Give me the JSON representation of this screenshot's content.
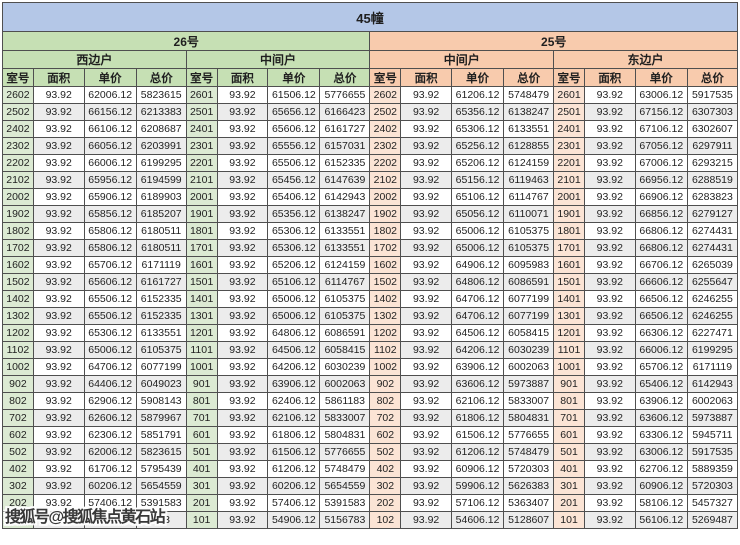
{
  "title": "45幢",
  "watermark": {
    "text": "搜狐号@搜狐焦点黄石站"
  },
  "colors": {
    "title_bar": "#b4c7e7",
    "group_green": "#c6e0b4",
    "group_peach": "#f8cbad",
    "room_cell_green": "#dcead3",
    "room_cell_peach": "#fbe4d5",
    "row_stripe": "#ececec",
    "border": "#4f4f4f"
  },
  "table": {
    "buildings": [
      {
        "label": "26号",
        "units": [
          "西边户",
          "中间户"
        ]
      },
      {
        "label": "25号",
        "units": [
          "中间户",
          "东边户"
        ]
      }
    ],
    "column_headers": [
      "室号",
      "面积",
      "单价",
      "总价"
    ],
    "rows": [
      [
        "2602",
        "93.92",
        "62006.12",
        "5823615",
        "2601",
        "93.92",
        "61506.12",
        "5776655",
        "2602",
        "93.92",
        "61206.12",
        "5748479",
        "2601",
        "93.92",
        "63006.12",
        "5917535"
      ],
      [
        "2502",
        "93.92",
        "66156.12",
        "6213383",
        "2501",
        "93.92",
        "65656.12",
        "6166423",
        "2502",
        "93.92",
        "65356.12",
        "6138247",
        "2501",
        "93.92",
        "67156.12",
        "6307303"
      ],
      [
        "2402",
        "93.92",
        "66106.12",
        "6208687",
        "2401",
        "93.92",
        "65606.12",
        "6161727",
        "2402",
        "93.92",
        "65306.12",
        "6133551",
        "2401",
        "93.92",
        "67106.12",
        "6302607"
      ],
      [
        "2302",
        "93.92",
        "66056.12",
        "6203991",
        "2301",
        "93.92",
        "65556.12",
        "6157031",
        "2302",
        "93.92",
        "65256.12",
        "6128855",
        "2301",
        "93.92",
        "67056.12",
        "6297911"
      ],
      [
        "2202",
        "93.92",
        "66006.12",
        "6199295",
        "2201",
        "93.92",
        "65506.12",
        "6152335",
        "2202",
        "93.92",
        "65206.12",
        "6124159",
        "2201",
        "93.92",
        "67006.12",
        "6293215"
      ],
      [
        "2102",
        "93.92",
        "65956.12",
        "6194599",
        "2101",
        "93.92",
        "65456.12",
        "6147639",
        "2102",
        "93.92",
        "65156.12",
        "6119463",
        "2101",
        "93.92",
        "66956.12",
        "6288519"
      ],
      [
        "2002",
        "93.92",
        "65906.12",
        "6189903",
        "2001",
        "93.92",
        "65406.12",
        "6142943",
        "2002",
        "93.92",
        "65106.12",
        "6114767",
        "2001",
        "93.92",
        "66906.12",
        "6283823"
      ],
      [
        "1902",
        "93.92",
        "65856.12",
        "6185207",
        "1901",
        "93.92",
        "65356.12",
        "6138247",
        "1902",
        "93.92",
        "65056.12",
        "6110071",
        "1901",
        "93.92",
        "66856.12",
        "6279127"
      ],
      [
        "1802",
        "93.92",
        "65806.12",
        "6180511",
        "1801",
        "93.92",
        "65306.12",
        "6133551",
        "1802",
        "93.92",
        "65006.12",
        "6105375",
        "1801",
        "93.92",
        "66806.12",
        "6274431"
      ],
      [
        "1702",
        "93.92",
        "65806.12",
        "6180511",
        "1701",
        "93.92",
        "65306.12",
        "6133551",
        "1702",
        "93.92",
        "65006.12",
        "6105375",
        "1701",
        "93.92",
        "66806.12",
        "6274431"
      ],
      [
        "1602",
        "93.92",
        "65706.12",
        "6171119",
        "1601",
        "93.92",
        "65206.12",
        "6124159",
        "1602",
        "93.92",
        "64906.12",
        "6095983",
        "1601",
        "93.92",
        "66706.12",
        "6265039"
      ],
      [
        "1502",
        "93.92",
        "65606.12",
        "6161727",
        "1501",
        "93.92",
        "65106.12",
        "6114767",
        "1502",
        "93.92",
        "64806.12",
        "6086591",
        "1501",
        "93.92",
        "66606.12",
        "6255647"
      ],
      [
        "1402",
        "93.92",
        "65506.12",
        "6152335",
        "1401",
        "93.92",
        "65006.12",
        "6105375",
        "1402",
        "93.92",
        "64706.12",
        "6077199",
        "1401",
        "93.92",
        "66506.12",
        "6246255"
      ],
      [
        "1302",
        "93.92",
        "65506.12",
        "6152335",
        "1301",
        "93.92",
        "65006.12",
        "6105375",
        "1302",
        "93.92",
        "64706.12",
        "6077199",
        "1301",
        "93.92",
        "66506.12",
        "6246255"
      ],
      [
        "1202",
        "93.92",
        "65306.12",
        "6133551",
        "1201",
        "93.92",
        "64806.12",
        "6086591",
        "1202",
        "93.92",
        "64506.12",
        "6058415",
        "1201",
        "93.92",
        "66306.12",
        "6227471"
      ],
      [
        "1102",
        "93.92",
        "65006.12",
        "6105375",
        "1101",
        "93.92",
        "64506.12",
        "6058415",
        "1102",
        "93.92",
        "64206.12",
        "6030239",
        "1101",
        "93.92",
        "66006.12",
        "6199295"
      ],
      [
        "1002",
        "93.92",
        "64706.12",
        "6077199",
        "1001",
        "93.92",
        "64206.12",
        "6030239",
        "1002",
        "93.92",
        "63906.12",
        "6002063",
        "1001",
        "93.92",
        "65706.12",
        "6171119"
      ],
      [
        "902",
        "93.92",
        "64406.12",
        "6049023",
        "901",
        "93.92",
        "63906.12",
        "6002063",
        "902",
        "93.92",
        "63606.12",
        "5973887",
        "901",
        "93.92",
        "65406.12",
        "6142943"
      ],
      [
        "802",
        "93.92",
        "62906.12",
        "5908143",
        "801",
        "93.92",
        "62406.12",
        "5861183",
        "802",
        "93.92",
        "62106.12",
        "5833007",
        "801",
        "93.92",
        "63906.12",
        "6002063"
      ],
      [
        "702",
        "93.92",
        "62606.12",
        "5879967",
        "701",
        "93.92",
        "62106.12",
        "5833007",
        "702",
        "93.92",
        "61806.12",
        "5804831",
        "701",
        "93.92",
        "63606.12",
        "5973887"
      ],
      [
        "602",
        "93.92",
        "62306.12",
        "5851791",
        "601",
        "93.92",
        "61806.12",
        "5804831",
        "602",
        "93.92",
        "61506.12",
        "5776655",
        "601",
        "93.92",
        "63306.12",
        "5945711"
      ],
      [
        "502",
        "93.92",
        "62006.12",
        "5823615",
        "501",
        "93.92",
        "61506.12",
        "5776655",
        "502",
        "93.92",
        "61206.12",
        "5748479",
        "501",
        "93.92",
        "63006.12",
        "5917535"
      ],
      [
        "402",
        "93.92",
        "61706.12",
        "5795439",
        "401",
        "93.92",
        "61206.12",
        "5748479",
        "402",
        "93.92",
        "60906.12",
        "5720303",
        "401",
        "93.92",
        "62706.12",
        "5889359"
      ],
      [
        "302",
        "93.92",
        "60206.12",
        "5654559",
        "301",
        "93.92",
        "60206.12",
        "5654559",
        "302",
        "93.92",
        "59906.12",
        "5626383",
        "301",
        "93.92",
        "60906.12",
        "5720303"
      ],
      [
        "202",
        "93.92",
        "57406.12",
        "5391583",
        "201",
        "93.92",
        "57406.12",
        "5391583",
        "202",
        "93.92",
        "57106.12",
        "5363407",
        "201",
        "93.92",
        "58106.12",
        "5457327"
      ],
      [
        "",
        "",
        "",
        "743",
        "101",
        "93.92",
        "54906.12",
        "5156783",
        "102",
        "93.92",
        "54606.12",
        "5128607",
        "101",
        "93.92",
        "56106.12",
        "5269487"
      ]
    ]
  }
}
